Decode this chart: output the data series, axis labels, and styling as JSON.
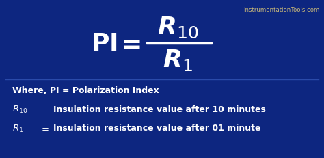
{
  "bg_color": "#0d2680",
  "text_color": "#ffffff",
  "watermark_color": "#c8b87a",
  "watermark_text": "InstrumentationTools.com",
  "where_line": "Where, PI = Polarization Index",
  "r10_desc": "Insulation resistance value after 10 minutes",
  "r1_desc": "Insulation resistance value after 01 minute",
  "figsize": [
    4.74,
    2.32
  ],
  "dpi": 100
}
